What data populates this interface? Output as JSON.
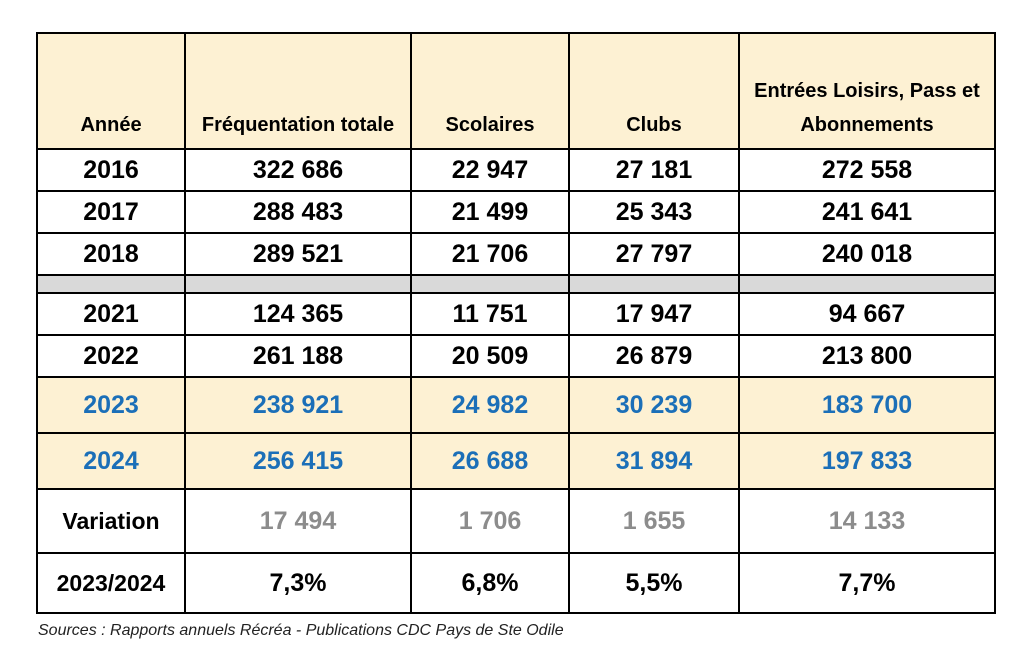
{
  "header": [
    "Année",
    "Fréquentation totale",
    "Scolaires",
    "Clubs",
    "Entrées Loisirs, Pass et Abonnements"
  ],
  "rows": [
    [
      "2016",
      "322 686",
      "22 947",
      "27 181",
      "272 558"
    ],
    [
      "2017",
      "288 483",
      "21 499",
      "25 343",
      "241 641"
    ],
    [
      "2018",
      "289 521",
      "21 706",
      "27 797",
      "240 018"
    ],
    [
      "2021",
      "124 365",
      "11 751",
      "17 947",
      "94 667"
    ],
    [
      "2022",
      "261 188",
      "20 509",
      "26 879",
      "213 800"
    ],
    [
      "2023",
      "238 921",
      "24 982",
      "30 239",
      "183 700"
    ],
    [
      "2024",
      "256 415",
      "26 688",
      "31 894",
      "197 833"
    ]
  ],
  "variation": {
    "label": "Variation",
    "values": [
      "17 494",
      "1 706",
      "1 655",
      "14 133"
    ],
    "period_label": "2023/2024",
    "percents": [
      "7,3%",
      "6,8%",
      "5,5%",
      "7,7%"
    ]
  },
  "highlight_color": "#1b6fb8",
  "sources": "Sources :  Rapports annuels Récréa - Publications CDC Pays de Ste Odile"
}
